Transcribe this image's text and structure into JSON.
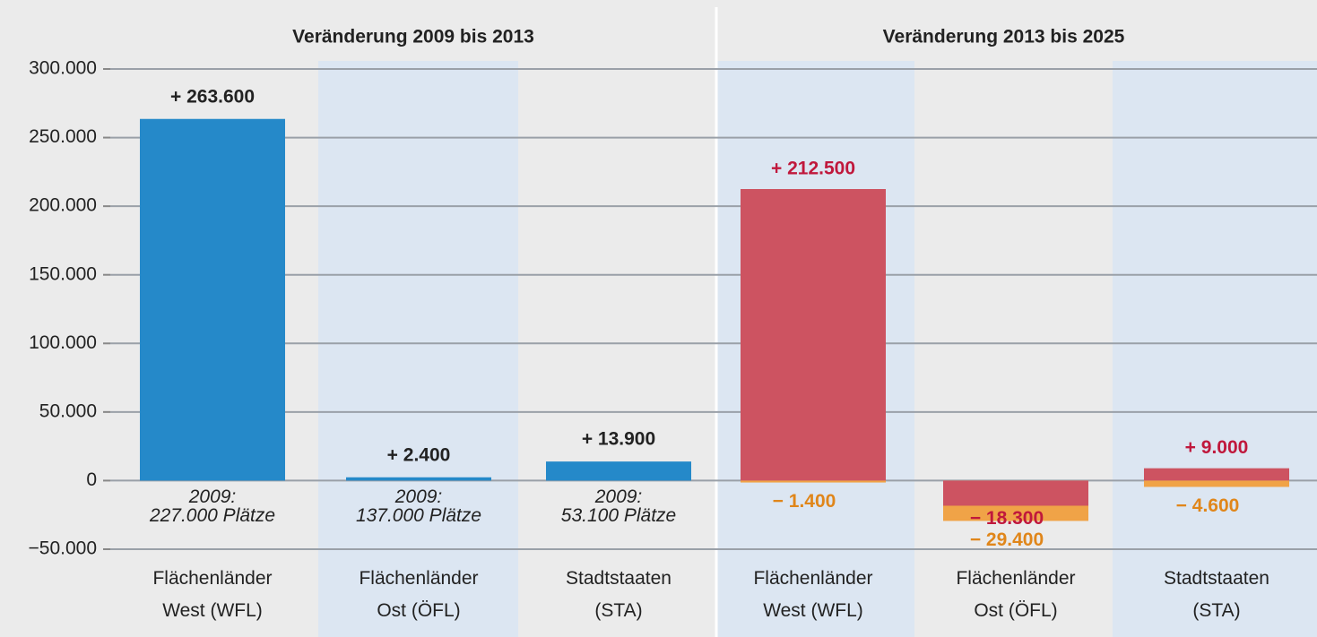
{
  "chart_data": [
    {
      "type": "bar",
      "title": "Veränderung 2009 bis 2013",
      "categories": [
        "Flächenländer\nWest (WFL)",
        "Flächenländer\nOst (ÖFL)",
        "Stadtstaaten\n(STA)"
      ],
      "values": [
        263600,
        2400,
        13900
      ],
      "value_labels": [
        "+ 263.600",
        "+ 2.400",
        "+ 13.900"
      ],
      "annotations": [
        "2009:\n227.000 Plätze",
        "2009:\n137.000 Plätze",
        "2009:\n53.100 Plätze"
      ],
      "color": "#2589c9",
      "ylim": [
        -50000,
        300000
      ],
      "yticks": [
        {
          "value": -50000,
          "label": "−50.000"
        },
        0,
        {
          "value": 50000,
          "label": "50.000"
        },
        {
          "value": 100000,
          "label": "100.000"
        },
        {
          "value": 150000,
          "label": "150.000"
        },
        {
          "value": 200000,
          "label": "200.000"
        },
        {
          "value": 250000,
          "label": "250.000"
        },
        {
          "value": 300000,
          "label": "300.000"
        }
      ],
      "grid": true
    },
    {
      "type": "overlap-bar",
      "title": "Veränderung 2013 bis 2025",
      "categories": [
        "Flächenländer\nWest (WFL)",
        "Flächenländer\nOst (ÖFL)",
        "Stadtstaaten\n(STA)"
      ],
      "series": [
        {
          "color": "#cd5361",
          "label_color": "#c0183c",
          "values": [
            212500,
            -18300,
            9000
          ],
          "value_labels": [
            "+ 212.500",
            "− 18.300",
            "+ 9.000"
          ]
        },
        {
          "color": "#f0a347",
          "label_color": "#e0861a",
          "values": [
            -1400,
            -29400,
            -4600
          ],
          "value_labels": [
            "− 1.400",
            "− 29.400",
            "− 4.600"
          ]
        }
      ],
      "ylim": [
        -50000,
        300000
      ]
    }
  ]
}
